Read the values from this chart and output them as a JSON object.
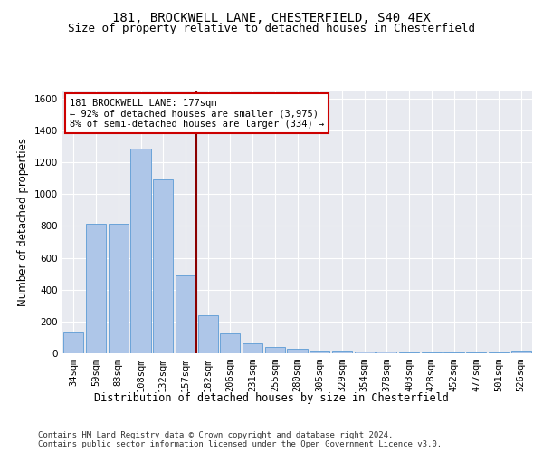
{
  "title1": "181, BROCKWELL LANE, CHESTERFIELD, S40 4EX",
  "title2": "Size of property relative to detached houses in Chesterfield",
  "xlabel": "Distribution of detached houses by size in Chesterfield",
  "ylabel": "Number of detached properties",
  "bar_labels": [
    "34sqm",
    "59sqm",
    "83sqm",
    "108sqm",
    "132sqm",
    "157sqm",
    "182sqm",
    "206sqm",
    "231sqm",
    "255sqm",
    "280sqm",
    "305sqm",
    "329sqm",
    "354sqm",
    "378sqm",
    "403sqm",
    "428sqm",
    "452sqm",
    "477sqm",
    "501sqm",
    "526sqm"
  ],
  "bar_values": [
    135,
    815,
    815,
    1285,
    1090,
    490,
    240,
    125,
    65,
    40,
    28,
    15,
    15,
    14,
    10,
    8,
    5,
    5,
    5,
    5,
    15
  ],
  "bar_color": "#aec6e8",
  "bar_edge_color": "#5b9bd5",
  "background_color": "#e8eaf0",
  "grid_color": "#ffffff",
  "vline_color": "#8b0000",
  "annotation_text": "181 BROCKWELL LANE: 177sqm\n← 92% of detached houses are smaller (3,975)\n8% of semi-detached houses are larger (334) →",
  "annotation_box_color": "#ffffff",
  "annotation_box_edge": "#cc0000",
  "ylim": [
    0,
    1650
  ],
  "yticks": [
    0,
    200,
    400,
    600,
    800,
    1000,
    1200,
    1400,
    1600
  ],
  "footer_text": "Contains HM Land Registry data © Crown copyright and database right 2024.\nContains public sector information licensed under the Open Government Licence v3.0.",
  "title1_fontsize": 10,
  "title2_fontsize": 9,
  "axis_label_fontsize": 8.5,
  "tick_fontsize": 7.5,
  "annotation_fontsize": 7.5,
  "footer_fontsize": 6.5
}
